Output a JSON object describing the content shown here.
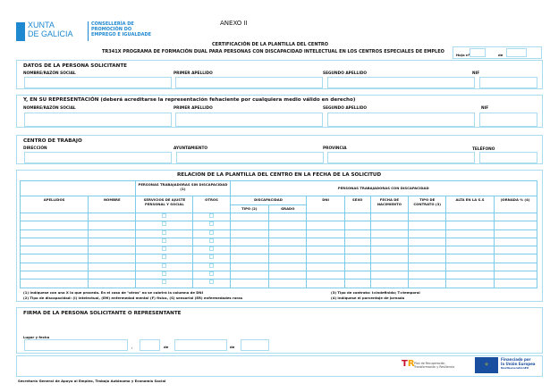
{
  "header": {
    "logo_line1": "XUNTA",
    "logo_line2": "DE GALICIA",
    "dept_line1": "CONSELLERÍA DE",
    "dept_line2": "PROMOCIÓN DO",
    "dept_line3": "EMPREGO E IGUALDADE",
    "annex": "ANEXO II",
    "title": "CERTIFICACIÓN DE LA PLANTILLA DEL CENTRO",
    "subtitle": "TR341X PROGRAMA DE FORMACIÓN DUAL PARA PERSONAS CON DISCAPACIDAD INTELECTUAL EN LOS CENTROS ESPECIALES DE EMPLEO",
    "sheet_label": "Hoja nº",
    "of_label": "de"
  },
  "applicant": {
    "title": "DATOS DE LA PERSONA SOLICITANTE",
    "fields": [
      "NOMBRE/RAZÓN SOCIAL",
      "PRIMER APELLIDO",
      "SEGUNDO APELLIDO",
      "NIF"
    ]
  },
  "representative": {
    "title": "Y, EN SU REPRESENTACIÓN (deberá acreditarse la representación fehaciente por cualquiera medio válido en derecho)",
    "fields": [
      "NOMBRE/RAZÓN SOCIAL",
      "PRIMER APELLIDO",
      "SEGUNDO APELLIDO",
      "NIF"
    ]
  },
  "workplace": {
    "title": "CENTRO DE TRABAJO",
    "fields": [
      "DIRECCIÓN",
      "AYUNTAMIENTO",
      "PROVINCIA",
      "TELÉFONO"
    ]
  },
  "staff": {
    "title": "RELACION DE LA PLANTILLA DEL CENTRO EN LA FECHA DE LA SOLICITUD",
    "group_without": "PERSONAS TRABAJADORAS SIN DISCAPACIDAD (1)",
    "group_with": "PERSONAS TRABAJADORAS CON DISCAPACIDAD",
    "cols": {
      "apellidos": "APELLIDOS",
      "nombre": "NOMBRE",
      "servicios": "SERVICIOS DE AJUSTE PERSONAL Y SOCIAL",
      "otros": "OTROS",
      "discapacidad": "DISCAPACIDAD",
      "tipo": "TIPO (2)",
      "grado": "GRADO",
      "dni": "DNI",
      "sexo": "SEXO",
      "fecha": "FECHA DE NACIMIENTO",
      "contrato": "TIPO DE CONTRATO (3)",
      "alta": "ALTA EN LA S.S",
      "jornada": "JORNADA % (4)"
    },
    "notes": [
      "(1) Indíquese con una X lo que proceda. En el caso de \"otros\" no se cubrirá la columna de DNI",
      "(2) Tipo de discapacidad: (I) intelectual, (EM) enfermedad mental (F) física, (S) sensorial (ER) enfermedades raras",
      "(3) Tipo de contrato: I=indefinido; T=temporal",
      "(4) Indíquese el porcentaje de jornada"
    ]
  },
  "signature": {
    "title": "FIRMA DE LA PERSONA SOLICITANTE O REPRESENTANTE",
    "place_date": "Lugar y fecha",
    "comma": ",",
    "de1": "de",
    "de2": "de"
  },
  "logos": {
    "recovery": "Plan de Recuperación, Transformación y Resiliencia",
    "eu_line1": "Financiado por",
    "eu_line2": "la Unión Europea",
    "eu_line3": "NextGenerationEU"
  },
  "footer": "Secretaría General de Apoyo al Empleo, Trabajo Autónomo y Economía Social",
  "colors": {
    "border": "#a9dcef",
    "brand": "#0b76c2"
  }
}
